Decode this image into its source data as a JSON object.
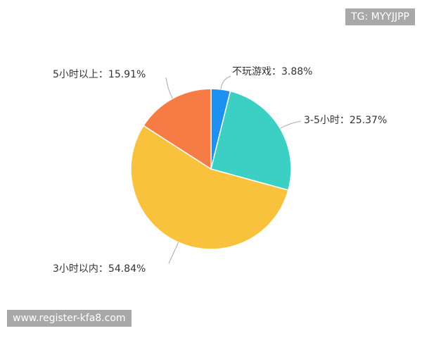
{
  "watermarks": {
    "top_right": "TG: MYYJJPP",
    "bottom_left": "www.register-kfa8.com"
  },
  "chart_data": {
    "type": "pie",
    "start": "top",
    "direction": "clockwise",
    "slices": [
      {
        "label": "不玩游戏",
        "value": 3.88,
        "text": "不玩游戏：3.88%",
        "color": "#1e90f0"
      },
      {
        "label": "3-5小时",
        "value": 25.37,
        "text": "3-5小时：25.37%",
        "color": "#3ccfc4"
      },
      {
        "label": "3小时以内",
        "value": 54.84,
        "text": "3小时以内：54.84%",
        "color": "#f9c23c"
      },
      {
        "label": "5小时以上",
        "value": 15.91,
        "text": "5小时以上：15.91%",
        "color": "#f77b45"
      }
    ]
  }
}
